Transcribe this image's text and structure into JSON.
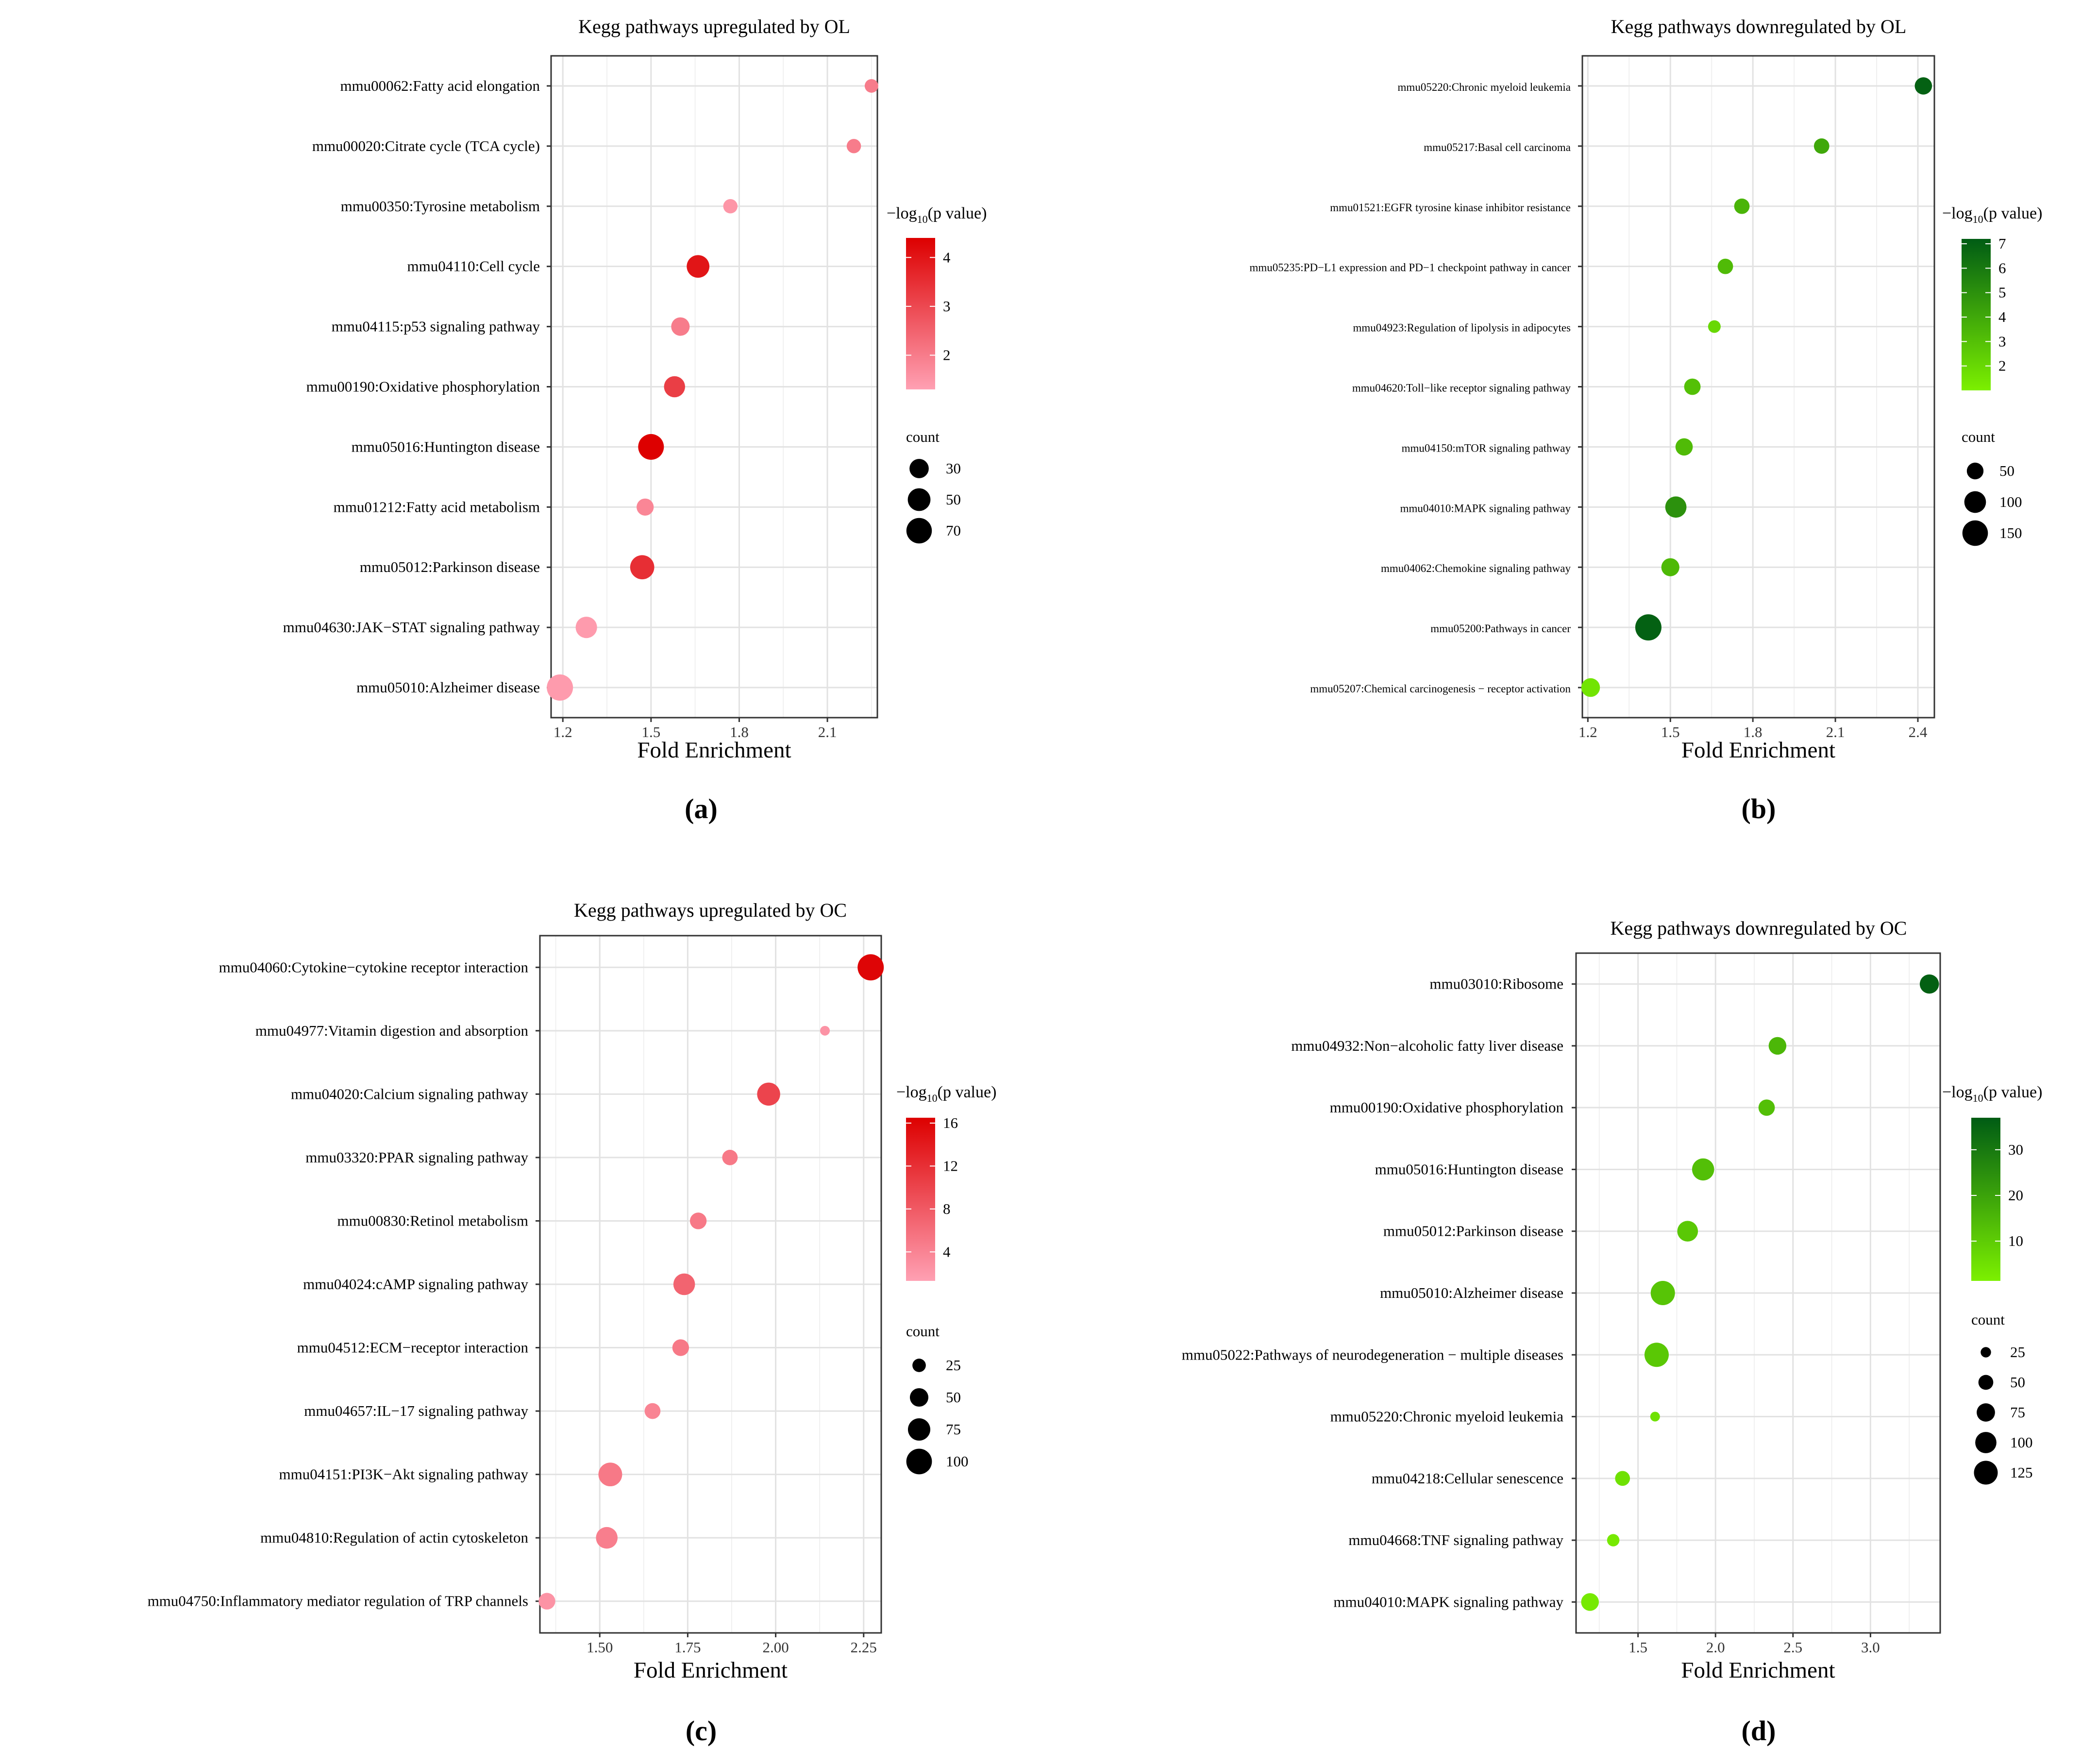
{
  "figure": {
    "panel_labels": [
      "(a)",
      "(b)",
      "(c)",
      "(d)"
    ]
  },
  "chart_data": [
    {
      "type": "scatter",
      "panel": "(a)",
      "title": "Kegg pathways upregulated by OL",
      "xlabel": "Fold Enrichment",
      "xlim": [
        1.16,
        2.27
      ],
      "xticks": [
        1.2,
        1.5,
        1.8,
        2.1
      ],
      "xtick_labels": [
        "1.2",
        "1.5",
        "1.8",
        "2.1"
      ],
      "color_legend": {
        "title_prefix": "−log",
        "title_sub": "10",
        "title_suffix": "(p value)",
        "range": [
          1.3,
          4.4
        ],
        "ticks": [
          2,
          3,
          4
        ],
        "tick_labels": [
          "2",
          "3",
          "4"
        ],
        "low_color": "#ffa0b3",
        "high_color": "#dd0000"
      },
      "size_legend": {
        "title": "count",
        "values": [
          30,
          50,
          70
        ],
        "labels": [
          "30",
          "50",
          "70"
        ]
      },
      "points": [
        {
          "label": "mmu00062:Fatty acid elongation",
          "x": 2.25,
          "neglog10p": 2.0,
          "count": 8
        },
        {
          "label": "mmu00020:Citrate cycle (TCA cycle)",
          "x": 2.19,
          "neglog10p": 2.0,
          "count": 10
        },
        {
          "label": "mmu00350:Tyrosine metabolism",
          "x": 1.77,
          "neglog10p": 1.5,
          "count": 10
        },
        {
          "label": "mmu04110:Cell cycle",
          "x": 1.66,
          "neglog10p": 4.0,
          "count": 50
        },
        {
          "label": "mmu04115:p53 signaling pathway",
          "x": 1.6,
          "neglog10p": 2.0,
          "count": 26
        },
        {
          "label": "mmu00190:Oxidative phosphorylation",
          "x": 1.58,
          "neglog10p": 3.2,
          "count": 40
        },
        {
          "label": "mmu05016:Huntington disease",
          "x": 1.5,
          "neglog10p": 4.4,
          "count": 72
        },
        {
          "label": "mmu01212:Fatty acid metabolism",
          "x": 1.48,
          "neglog10p": 1.8,
          "count": 20
        },
        {
          "label": "mmu05012:Parkinson disease",
          "x": 1.47,
          "neglog10p": 3.5,
          "count": 60
        },
        {
          "label": "mmu04630:JAK−STAT signaling pathway",
          "x": 1.28,
          "neglog10p": 1.4,
          "count": 42
        },
        {
          "label": "mmu05010:Alzheimer disease",
          "x": 1.19,
          "neglog10p": 1.4,
          "count": 76
        }
      ]
    },
    {
      "type": "scatter",
      "panel": "(b)",
      "title": "Kegg pathways downregulated by OL",
      "xlabel": "Fold Enrichment",
      "xlim": [
        1.18,
        2.46
      ],
      "xticks": [
        1.2,
        1.5,
        1.8,
        2.1,
        2.4
      ],
      "xtick_labels": [
        "1.2",
        "1.5",
        "1.8",
        "2.1",
        "2.4"
      ],
      "color_legend": {
        "title_prefix": "−log",
        "title_sub": "10",
        "title_suffix": "(p value)",
        "range": [
          1.0,
          7.2
        ],
        "ticks": [
          2,
          3,
          4,
          5,
          6,
          7
        ],
        "tick_labels": [
          "2",
          "3",
          "4",
          "5",
          "6",
          "7"
        ],
        "low_color": "#7cf000",
        "high_color": "#005c14"
      },
      "size_legend": {
        "title": "count",
        "values": [
          50,
          100,
          150
        ],
        "labels": [
          "50",
          "100",
          "150"
        ]
      },
      "points": [
        {
          "label": "mmu05220:Chronic myeloid leukemia",
          "x": 2.42,
          "neglog10p": 7.0,
          "count": 55
        },
        {
          "label": "mmu05217:Basal cell carcinoma",
          "x": 2.05,
          "neglog10p": 4.0,
          "count": 40
        },
        {
          "label": "mmu01521:EGFR tyrosine kinase inhibitor resistance",
          "x": 1.76,
          "neglog10p": 3.5,
          "count": 40
        },
        {
          "label": "mmu05235:PD−L1 expression and PD−1 checkpoint pathway in cancer",
          "x": 1.7,
          "neglog10p": 3.2,
          "count": 40
        },
        {
          "label": "mmu04923:Regulation of lipolysis in adipocytes",
          "x": 1.66,
          "neglog10p": 2.0,
          "count": 22
        },
        {
          "label": "mmu04620:Toll−like receptor signaling pathway",
          "x": 1.58,
          "neglog10p": 3.0,
          "count": 48
        },
        {
          "label": "mmu04150:mTOR signaling pathway",
          "x": 1.55,
          "neglog10p": 3.2,
          "count": 55
        },
        {
          "label": "mmu04010:MAPK signaling pathway",
          "x": 1.52,
          "neglog10p": 5.0,
          "count": 95
        },
        {
          "label": "mmu04062:Chemokine signaling pathway",
          "x": 1.5,
          "neglog10p": 3.3,
          "count": 62
        },
        {
          "label": "mmu05200:Pathways in cancer",
          "x": 1.42,
          "neglog10p": 7.0,
          "count": 160
        },
        {
          "label": "mmu05207:Chemical carcinogenesis − receptor activation",
          "x": 1.21,
          "neglog10p": 1.5,
          "count": 68
        }
      ]
    },
    {
      "type": "scatter",
      "panel": "(c)",
      "title": "Kegg pathways upregulated by OC",
      "xlabel": "Fold Enrichment",
      "xlim": [
        1.33,
        2.3
      ],
      "xticks": [
        1.5,
        1.75,
        2.0,
        2.25
      ],
      "xtick_labels": [
        "1.50",
        "1.75",
        "2.00",
        "2.25"
      ],
      "color_legend": {
        "title_prefix": "−log",
        "title_sub": "10",
        "title_suffix": "(p value)",
        "range": [
          1.3,
          16.5
        ],
        "ticks": [
          4,
          8,
          12,
          16
        ],
        "tick_labels": [
          "4",
          "8",
          "12",
          "16"
        ],
        "low_color": "#ffa0b3",
        "high_color": "#dd0000"
      },
      "size_legend": {
        "title": "count",
        "values": [
          25,
          50,
          75,
          100
        ],
        "labels": [
          "25",
          "50",
          "75",
          "100"
        ]
      },
      "points": [
        {
          "label": "mmu04060:Cytokine−cytokine receptor interaction",
          "x": 2.27,
          "neglog10p": 16.0,
          "count": 105
        },
        {
          "label": "mmu04977:Vitamin digestion and absorption",
          "x": 2.14,
          "neglog10p": 2.5,
          "count": 12
        },
        {
          "label": "mmu04020:Calcium signaling pathway",
          "x": 1.98,
          "neglog10p": 10.0,
          "count": 80
        },
        {
          "label": "mmu03320:PPAR signaling pathway",
          "x": 1.87,
          "neglog10p": 5.0,
          "count": 34
        },
        {
          "label": "mmu00830:Retinol metabolism",
          "x": 1.78,
          "neglog10p": 5.0,
          "count": 40
        },
        {
          "label": "mmu04024:cAMP signaling pathway",
          "x": 1.74,
          "neglog10p": 7.0,
          "count": 70
        },
        {
          "label": "mmu04512:ECM−receptor interaction",
          "x": 1.73,
          "neglog10p": 5.0,
          "count": 40
        },
        {
          "label": "mmu04657:IL−17 signaling pathway",
          "x": 1.65,
          "neglog10p": 4.0,
          "count": 36
        },
        {
          "label": "mmu04151:PI3K−Akt signaling pathway",
          "x": 1.53,
          "neglog10p": 5.0,
          "count": 85
        },
        {
          "label": "mmu04810:Regulation of actin cytoskeleton",
          "x": 1.52,
          "neglog10p": 4.5,
          "count": 70
        },
        {
          "label": "mmu04750:Inflammatory mediator regulation of TRP channels",
          "x": 1.35,
          "neglog10p": 2.5,
          "count": 40
        }
      ]
    },
    {
      "type": "scatter",
      "panel": "(d)",
      "title": "Kegg pathways downregulated by OC",
      "xlabel": "Fold Enrichment",
      "xlim": [
        1.1,
        3.45
      ],
      "xticks": [
        1.5,
        2.0,
        2.5,
        3.0
      ],
      "xtick_labels": [
        "1.5",
        "2.0",
        "2.5",
        "3.0"
      ],
      "color_legend": {
        "title_prefix": "−log",
        "title_sub": "10",
        "title_suffix": "(p value)",
        "range": [
          1.3,
          37
        ],
        "ticks": [
          10,
          20,
          30
        ],
        "tick_labels": [
          "10",
          "20",
          "30"
        ],
        "low_color": "#7cf000",
        "high_color": "#005c14"
      },
      "size_legend": {
        "title": "count",
        "values": [
          25,
          50,
          75,
          100,
          125
        ],
        "labels": [
          "25",
          "50",
          "75",
          "100",
          "125"
        ]
      },
      "points": [
        {
          "label": "mmu03010:Ribosome",
          "x": 3.38,
          "neglog10p": 36.0,
          "count": 82
        },
        {
          "label": "mmu04932:Non−alcoholic fatty liver disease",
          "x": 2.4,
          "neglog10p": 15.0,
          "count": 70
        },
        {
          "label": "mmu00190:Oxidative phosphorylation",
          "x": 2.33,
          "neglog10p": 13.0,
          "count": 60
        },
        {
          "label": "mmu05016:Huntington disease",
          "x": 1.92,
          "neglog10p": 13.0,
          "count": 108
        },
        {
          "label": "mmu05012:Parkinson disease",
          "x": 1.82,
          "neglog10p": 11.0,
          "count": 95
        },
        {
          "label": "mmu05010:Alzheimer disease",
          "x": 1.66,
          "neglog10p": 12.0,
          "count": 130
        },
        {
          "label": "mmu05022:Pathways of neurodegeneration − multiple diseases",
          "x": 1.62,
          "neglog10p": 11.0,
          "count": 130
        },
        {
          "label": "mmu05220:Chronic myeloid leukemia",
          "x": 1.61,
          "neglog10p": 5.0,
          "count": 22
        },
        {
          "label": "mmu04218:Cellular senescence",
          "x": 1.4,
          "neglog10p": 5.0,
          "count": 50
        },
        {
          "label": "mmu04668:TNF signaling pathway",
          "x": 1.34,
          "neglog10p": 3.0,
          "count": 35
        },
        {
          "label": "mmu04010:MAPK signaling pathway",
          "x": 1.19,
          "neglog10p": 3.0,
          "count": 70
        }
      ]
    }
  ]
}
